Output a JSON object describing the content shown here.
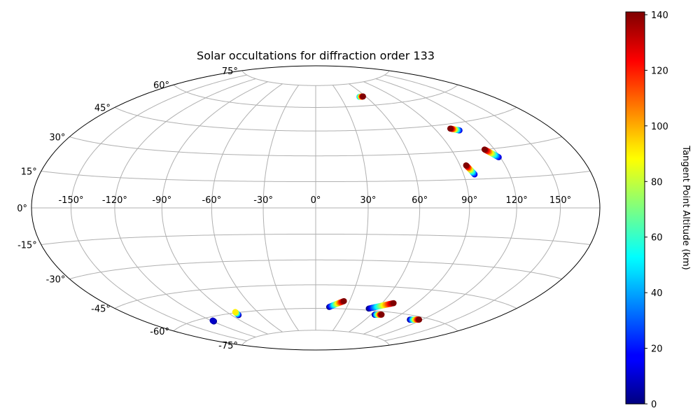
{
  "chart_data": {
    "type": "scatter",
    "projection": "hammer",
    "title": "Solar occultations for diffraction order 133",
    "grid": true,
    "colormap": "jet",
    "lon_tick_labels": [
      {
        "value": -150,
        "label": "-150°"
      },
      {
        "value": -120,
        "label": "-120°"
      },
      {
        "value": -90,
        "label": "-90°"
      },
      {
        "value": -60,
        "label": "-60°"
      },
      {
        "value": -30,
        "label": "-30°"
      },
      {
        "value": 0,
        "label": "0°"
      },
      {
        "value": 30,
        "label": "30°"
      },
      {
        "value": 60,
        "label": "60°"
      },
      {
        "value": 90,
        "label": "90°"
      },
      {
        "value": 120,
        "label": "120°"
      },
      {
        "value": 150,
        "label": "150°"
      }
    ],
    "lat_tick_labels": [
      {
        "value": 75,
        "label": "75°"
      },
      {
        "value": 60,
        "label": "60°"
      },
      {
        "value": 45,
        "label": "45°"
      },
      {
        "value": 30,
        "label": "30°"
      },
      {
        "value": 15,
        "label": "15°"
      },
      {
        "value": 0,
        "label": "0°"
      },
      {
        "value": -15,
        "label": "-15°"
      },
      {
        "value": -30,
        "label": "-30°"
      },
      {
        "value": -45,
        "label": "-45°"
      },
      {
        "value": -60,
        "label": "-60°"
      },
      {
        "value": -75,
        "label": "-75°"
      }
    ],
    "colorbar": {
      "label": "Tangent Point Altitude (km)",
      "min": 0,
      "max": 141,
      "ticks": [
        {
          "value": 0,
          "label": "0"
        },
        {
          "value": 20,
          "label": "20"
        },
        {
          "value": 40,
          "label": "40"
        },
        {
          "value": 60,
          "label": "60"
        },
        {
          "value": 80,
          "label": "80"
        },
        {
          "value": 100,
          "label": "100"
        },
        {
          "value": 120,
          "label": "120"
        },
        {
          "value": 140,
          "label": "140"
        }
      ]
    },
    "series": [
      {
        "start": {
          "lon": 52.5,
          "lat": 66.0,
          "alt": 40
        },
        "end": {
          "lon": 57.0,
          "lat": 66.0,
          "alt": 141
        }
      },
      {
        "start": {
          "lon": 107.5,
          "lat": 41.0,
          "alt": 10
        },
        "end": {
          "lon": 102.0,
          "lat": 42.5,
          "alt": 141
        }
      },
      {
        "start": {
          "lon": 119.0,
          "lat": 25.5,
          "alt": 10
        },
        "end": {
          "lon": 113.0,
          "lat": 30.0,
          "alt": 141
        }
      },
      {
        "start": {
          "lon": 97.0,
          "lat": 17.5,
          "alt": 10
        },
        "end": {
          "lon": 94.0,
          "lat": 22.5,
          "alt": 141
        }
      },
      {
        "start": {
          "lon": -119.0,
          "lat": -62.5,
          "alt": 0
        },
        "end": {
          "lon": -118.5,
          "lat": -62.0,
          "alt": 10
        }
      },
      {
        "start": {
          "lon": -83.0,
          "lat": -61.5,
          "alt": 0
        },
        "end": {
          "lon": -82.0,
          "lat": -59.5,
          "alt": 90
        }
      },
      {
        "start": {
          "lon": 13.0,
          "lat": -59.0,
          "alt": 0
        },
        "end": {
          "lon": 25.0,
          "lat": -55.0,
          "alt": 141
        }
      },
      {
        "start": {
          "lon": 52.0,
          "lat": -59.0,
          "alt": 0
        },
        "end": {
          "lon": 70.0,
          "lat": -54.5,
          "alt": 141
        }
      },
      {
        "start": {
          "lon": 64.0,
          "lat": -62.5,
          "alt": 0
        },
        "end": {
          "lon": 71.0,
          "lat": -62.0,
          "alt": 141
        }
      },
      {
        "start": {
          "lon": 108.0,
          "lat": -62.5,
          "alt": 0
        },
        "end": {
          "lon": 117.0,
          "lat": -61.5,
          "alt": 141
        }
      }
    ]
  }
}
